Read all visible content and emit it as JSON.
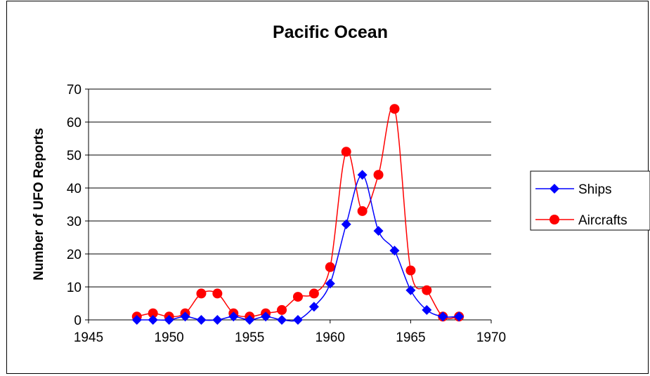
{
  "chart_data": {
    "type": "line",
    "title": "Pacific Ocean",
    "xlabel": "",
    "ylabel": "Number of UFO Reports",
    "xlim": [
      1945,
      1970
    ],
    "ylim": [
      0,
      70
    ],
    "xticks": [
      1945,
      1950,
      1955,
      1960,
      1965,
      1970
    ],
    "yticks": [
      0,
      10,
      20,
      30,
      40,
      50,
      60,
      70
    ],
    "grid": "horizontal",
    "legend": "right",
    "series": [
      {
        "name": "Ships",
        "color": "#0000ff",
        "marker": "diamond",
        "x": [
          1948,
          1949,
          1950,
          1951,
          1952,
          1953,
          1954,
          1955,
          1956,
          1957,
          1958,
          1959,
          1960,
          1961,
          1962,
          1963,
          1964,
          1965,
          1966,
          1967,
          1968
        ],
        "y": [
          0,
          0,
          0,
          1,
          0,
          0,
          1,
          0,
          1,
          0,
          0,
          4,
          11,
          29,
          44,
          27,
          21,
          9,
          3,
          1,
          1
        ]
      },
      {
        "name": "Aircrafts",
        "color": "#ff0000",
        "marker": "circle",
        "x": [
          1948,
          1949,
          1950,
          1951,
          1952,
          1953,
          1954,
          1955,
          1956,
          1957,
          1958,
          1959,
          1960,
          1961,
          1962,
          1963,
          1964,
          1965,
          1966,
          1967,
          1968
        ],
        "y": [
          1,
          2,
          1,
          2,
          8,
          8,
          2,
          1,
          2,
          3,
          7,
          8,
          16,
          51,
          33,
          44,
          64,
          15,
          9,
          1,
          1
        ]
      }
    ]
  }
}
